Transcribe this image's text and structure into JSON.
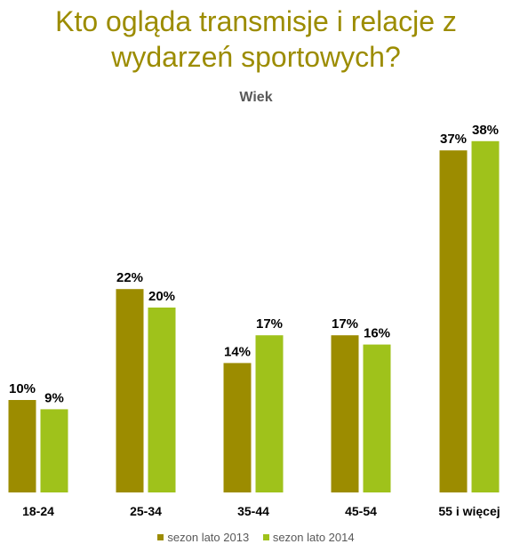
{
  "chart_data": {
    "type": "bar",
    "title": "Kto ogląda transmisje i relacje z\nwydarzeń sportowych?",
    "subtitle": "Wiek",
    "categories": [
      "18-24",
      "25-34",
      "35-44",
      "45-54",
      "55 i więcej"
    ],
    "series": [
      {
        "name": "sezon lato 2013",
        "color": "#9c8c00",
        "values": [
          10,
          22,
          14,
          17,
          37
        ],
        "labels": [
          "10%",
          "22%",
          "14%",
          "17%",
          "37%"
        ]
      },
      {
        "name": "sezon lato 2014",
        "color": "#9fc21b",
        "values": [
          9,
          20,
          17,
          16,
          38
        ],
        "labels": [
          "9%",
          "20%",
          "17%",
          "16%",
          "38%"
        ]
      }
    ],
    "ylim": [
      0,
      40
    ],
    "grid": false,
    "legend": "bottom"
  }
}
